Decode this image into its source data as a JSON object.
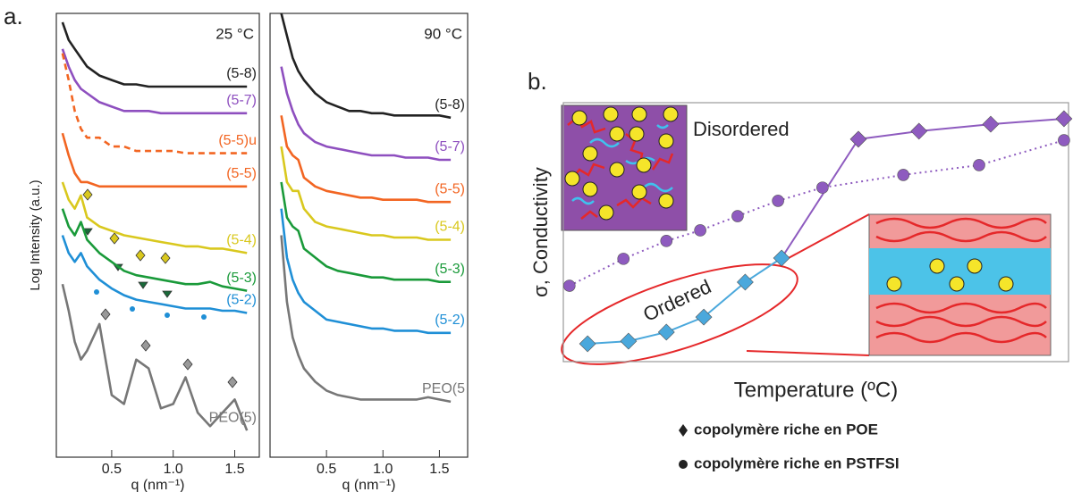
{
  "figure": {
    "panel_a_label": "a.",
    "panel_b_label": "b."
  },
  "insets": {
    "disordered": "Disordered",
    "ordered": "Ordered"
  },
  "chart_data": [
    {
      "type": "line",
      "title": "25 °C",
      "ylabel": "Log Intensity (a.u.)",
      "xlabel": "q (nm⁻¹)",
      "x": [
        0.1,
        0.15,
        0.2,
        0.25,
        0.3,
        0.4,
        0.5,
        0.6,
        0.7,
        0.8,
        0.9,
        1.0,
        1.1,
        1.2,
        1.3,
        1.4,
        1.5,
        1.6
      ],
      "xlim": [
        0.05,
        1.7
      ],
      "ylim": [
        0,
        100
      ],
      "xticks": [
        0.5,
        {
          "value": 1,
          "label": "1.0"
        },
        1.5
      ],
      "series": [
        {
          "name": "(5-8)",
          "color": "#222222",
          "values": [
            98,
            94,
            92,
            90,
            88,
            86,
            85,
            84,
            84,
            83.5,
            83.5,
            83.5,
            83.5,
            83.5,
            83.5,
            83.5,
            83.5,
            83.5
          ]
        },
        {
          "name": "(5-7)",
          "color": "#8e4fbf",
          "values": [
            92,
            88,
            85,
            83,
            82,
            80,
            79,
            78,
            78,
            78,
            77.5,
            77.5,
            77.5,
            77.5,
            77.5,
            77.5,
            77.5,
            77.5
          ]
        },
        {
          "name": "(5-5)u",
          "color": "#f26522",
          "dashed": true,
          "values": [
            91,
            85,
            78,
            74,
            72,
            72,
            70,
            70,
            69,
            69,
            69,
            69,
            68.5,
            68.5,
            68.5,
            68.5,
            68.5,
            68.5
          ]
        },
        {
          "name": "(5-5)",
          "color": "#f26522",
          "values": [
            73,
            68,
            64,
            62,
            62,
            61,
            61,
            61,
            61,
            61,
            61,
            61,
            61,
            61,
            61,
            61,
            61,
            61
          ]
        },
        {
          "name": "(5-4)",
          "color": "#d9c81e",
          "values": [
            62,
            58,
            56,
            59,
            54,
            52,
            51,
            50,
            49.5,
            49,
            48.5,
            48,
            47.5,
            47.5,
            47,
            47,
            46.5,
            46
          ]
        },
        {
          "name": "(5-3)",
          "color": "#1a9a3a",
          "values": [
            56,
            52,
            50,
            53,
            49,
            46,
            44,
            42,
            41,
            40.5,
            40,
            39.5,
            39,
            39,
            39.5,
            38.5,
            38,
            37.5
          ]
        },
        {
          "name": "(5-2)",
          "color": "#1f8fd6",
          "values": [
            50,
            46,
            44,
            46,
            43,
            40,
            38,
            36.5,
            35.5,
            35,
            34.5,
            34,
            33.5,
            33.5,
            33.5,
            33,
            33,
            32.5
          ]
        },
        {
          "name": "PEO(5)",
          "color": "#777777",
          "values": [
            39,
            33,
            26,
            22,
            24,
            30,
            14,
            12,
            22,
            20,
            11,
            12,
            18,
            10,
            7,
            10,
            13,
            6
          ]
        }
      ]
    },
    {
      "type": "line",
      "title": "90 °C",
      "xlabel": "q (nm⁻¹)",
      "x": [
        0.1,
        0.15,
        0.2,
        0.25,
        0.3,
        0.4,
        0.5,
        0.6,
        0.7,
        0.8,
        0.9,
        1.0,
        1.1,
        1.2,
        1.3,
        1.4,
        1.5,
        1.6
      ],
      "xlim": [
        0,
        1.75
      ],
      "ylim": [
        0,
        100
      ],
      "xticks": [
        0.5,
        {
          "value": 1,
          "label": "1.0"
        },
        1.5
      ],
      "series": [
        {
          "name": "(5-8)",
          "color": "#222222",
          "values": [
            100,
            95,
            90,
            87,
            85,
            82,
            80,
            79,
            78,
            78,
            77.5,
            77.5,
            77,
            77,
            77,
            77,
            77,
            76.5
          ]
        },
        {
          "name": "(5-7)",
          "color": "#8e4fbf",
          "values": [
            88,
            82,
            78,
            75,
            73,
            71,
            70,
            69.5,
            69,
            68.5,
            68,
            68,
            68,
            67.5,
            67.5,
            67.5,
            67,
            67
          ]
        },
        {
          "name": "(5-5)",
          "color": "#f26522",
          "values": [
            77,
            70,
            68,
            67,
            63,
            61,
            60,
            59.5,
            59,
            58.5,
            58.5,
            58,
            58,
            58,
            58,
            57.5,
            57.5,
            57.5
          ]
        },
        {
          "name": "(5-4)",
          "color": "#d9c81e",
          "values": [
            70,
            62,
            60,
            60,
            56,
            53,
            52,
            51.5,
            51,
            50.5,
            50,
            50,
            49.5,
            49.5,
            49.5,
            49,
            49,
            49
          ]
        },
        {
          "name": "(5-3)",
          "color": "#1a9a3a",
          "values": [
            62,
            54,
            52,
            51,
            47,
            45,
            43,
            42,
            41.5,
            41,
            40.5,
            40.5,
            40,
            40,
            40,
            40,
            39.5,
            39.5
          ]
        },
        {
          "name": "(5-2)",
          "color": "#1f8fd6",
          "values": [
            56,
            45,
            40,
            37,
            35,
            33,
            31,
            30.5,
            30,
            29.5,
            29,
            29,
            28.5,
            28.5,
            28.5,
            28,
            28,
            28
          ]
        },
        {
          "name": "PEO(5",
          "color": "#777777",
          "values": [
            50,
            35,
            27,
            23,
            20,
            17,
            15,
            14,
            13.5,
            13,
            13,
            13,
            13,
            13,
            13,
            13.5,
            13,
            12.5
          ]
        }
      ]
    },
    {
      "type": "line",
      "xlabel": "Temperature (ºC)",
      "ylabel": "σ, Conductivity",
      "xlim": [
        0,
        100
      ],
      "ylim": [
        0,
        100
      ],
      "series": [
        {
          "name": "copolymère riche en POE",
          "marker": "diamond",
          "color": "#8e5bbf",
          "marker_colors": [
            "#4aa8dc",
            "#4aa8dc",
            "#4aa8dc",
            "#4aa8dc",
            "#4aa8dc",
            "#4aa8dc",
            "#8e5bbf",
            "#8e5bbf",
            "#8e5bbf",
            "#8e5bbf"
          ],
          "x": [
            4.8,
            12.9,
            20.4,
            27.8,
            36,
            43.2,
            58.4,
            70.4,
            84.6,
            99.1
          ],
          "values": [
            6.9,
            7.9,
            11.4,
            17.2,
            30.7,
            40,
            85.9,
            89,
            91.7,
            93.8
          ]
        },
        {
          "name": "copolymère riche en PSTFSI",
          "marker": "circle",
          "color": "#8e5bbf",
          "dotted": true,
          "x": [
            1.2,
            11.9,
            20.4,
            27.1,
            34.5,
            42.5,
            51.3,
            67.3,
            82.3,
            99.1
          ],
          "values": [
            29.3,
            39.7,
            46.6,
            50.7,
            56.2,
            62.1,
            67.2,
            72.1,
            75.9,
            85.5
          ]
        }
      ]
    }
  ]
}
